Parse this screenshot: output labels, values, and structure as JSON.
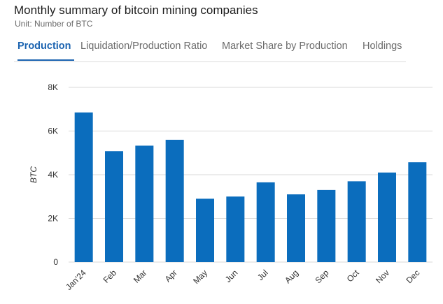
{
  "header": {
    "title": "Monthly summary of bitcoin mining companies",
    "subtitle": "Unit: Number of BTC"
  },
  "tabs": [
    {
      "label": "Production",
      "active": true
    },
    {
      "label": "Liquidation/Production Ratio",
      "active": false
    },
    {
      "label": "Market Share by Production",
      "active": false
    },
    {
      "label": "Holdings",
      "active": false
    }
  ],
  "colors": {
    "bar": "#0b6dbd",
    "accent": "#1b63b0",
    "grid": "#d9d9d9"
  },
  "chart_data": {
    "type": "bar",
    "categories": [
      "Jan'24",
      "Feb",
      "Mar",
      "Apr",
      "May",
      "Jun",
      "Jul",
      "Aug",
      "Sep",
      "Oct",
      "Nov",
      "Dec"
    ],
    "values": [
      6850,
      5080,
      5330,
      5600,
      2900,
      3000,
      3650,
      3100,
      3300,
      3700,
      4100,
      4570
    ],
    "ylabel": "BTC",
    "ylim": [
      0,
      8000
    ],
    "yticks": [
      0,
      2000,
      4000,
      6000,
      8000
    ],
    "ytick_labels": [
      "0",
      "2K",
      "4K",
      "6K",
      "8K"
    ],
    "grid": true
  }
}
